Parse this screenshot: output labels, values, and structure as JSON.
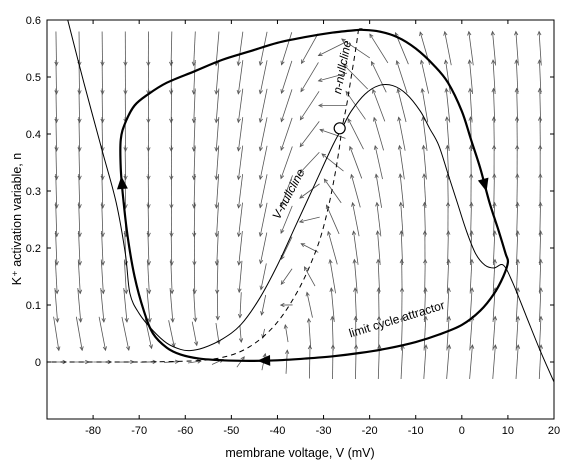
{
  "chart_data": {
    "type": "line",
    "title": "",
    "xlabel": "membrane voltage, V (mV)",
    "ylabel": "K⁺ activation variable, n",
    "xlim": [
      -90,
      20
    ],
    "ylim": [
      -0.1,
      0.6
    ],
    "x_ticks": [
      -80,
      -70,
      -60,
      -50,
      -40,
      -30,
      -20,
      -10,
      0,
      10,
      20
    ],
    "y_ticks": [
      0,
      0.1,
      0.2,
      0.3,
      0.4,
      0.5,
      0.6
    ],
    "x_tick_labels": [
      "-80",
      "-70",
      "-60",
      "-50",
      "-40",
      "-30",
      "-20",
      "-10",
      "0",
      "10",
      "20"
    ],
    "y_tick_labels": [
      "0",
      "0.1",
      "0.2",
      "0.3",
      "0.4",
      "0.5",
      "0.6"
    ],
    "grid": false,
    "legend": "none",
    "annotations": {
      "v_nullcline": "V-nullcline",
      "n_nullcline": "n-nullcline",
      "limit_cycle": "limit cycle attractor"
    },
    "series": [
      {
        "name": "V-nullcline",
        "style": "thin-solid",
        "x": [
          -85.5,
          -82,
          -78,
          -75,
          -73,
          -72,
          -70,
          -67,
          -64,
          -61,
          -59,
          -56,
          -52,
          -48,
          -44,
          -40,
          -36,
          -32,
          -28,
          -26,
          -24,
          -21,
          -18,
          -15,
          -12,
          -9,
          -7,
          -5,
          -3,
          -1,
          1,
          3,
          5,
          7,
          9,
          11,
          14,
          17,
          20
        ],
        "y": [
          0.6,
          0.49,
          0.37,
          0.28,
          0.19,
          0.12,
          0.085,
          0.055,
          0.033,
          0.022,
          0.02,
          0.025,
          0.04,
          0.065,
          0.11,
          0.17,
          0.24,
          0.31,
          0.38,
          0.41,
          0.44,
          0.47,
          0.485,
          0.485,
          0.47,
          0.44,
          0.41,
          0.38,
          0.33,
          0.28,
          0.23,
          0.19,
          0.17,
          0.165,
          0.17,
          0.14,
          0.08,
          0.02,
          -0.035
        ]
      },
      {
        "name": "n-nullcline",
        "style": "dashed",
        "x": [
          -89,
          -80,
          -70,
          -62,
          -58,
          -55,
          -52,
          -49,
          -46,
          -43,
          -40,
          -37,
          -34,
          -31,
          -29,
          -27.5,
          -26.5,
          -26,
          -25,
          -24,
          -23,
          -22.3
        ],
        "y": [
          0.0,
          0.0,
          0.0,
          0.001,
          0.002,
          0.004,
          0.008,
          0.015,
          0.027,
          0.045,
          0.07,
          0.105,
          0.15,
          0.21,
          0.27,
          0.33,
          0.38,
          0.41,
          0.45,
          0.5,
          0.55,
          0.59
        ]
      },
      {
        "name": "limit cycle",
        "style": "thick-solid",
        "x": [
          -22,
          -18,
          -14,
          -10,
          -6,
          -3,
          0,
          2,
          4,
          6,
          8,
          9.5,
          10,
          9,
          7,
          4,
          0,
          -5,
          -10,
          -16,
          -22,
          -28,
          -34,
          -40,
          -46,
          -52,
          -57,
          -61,
          -64,
          -67,
          -69,
          -71,
          -72.5,
          -73.5,
          -74,
          -74,
          -73,
          -71,
          -68,
          -64,
          -58,
          -52,
          -46,
          -40,
          -34,
          -28,
          -22
        ],
        "y": [
          0.583,
          0.58,
          0.57,
          0.55,
          0.52,
          0.49,
          0.44,
          0.39,
          0.34,
          0.28,
          0.23,
          0.19,
          0.175,
          0.15,
          0.12,
          0.09,
          0.065,
          0.048,
          0.035,
          0.024,
          0.016,
          0.01,
          0.006,
          0.003,
          0.002,
          0.003,
          0.006,
          0.013,
          0.025,
          0.05,
          0.09,
          0.15,
          0.22,
          0.29,
          0.34,
          0.39,
          0.42,
          0.45,
          0.47,
          0.49,
          0.51,
          0.53,
          0.545,
          0.56,
          0.57,
          0.578,
          0.583
        ]
      }
    ],
    "equilibrium_point": {
      "x": -26.5,
      "y": 0.41,
      "type": "unstable"
    },
    "flow_arrows": {
      "x_step": 10,
      "x_from": -88,
      "y_step": 0.05,
      "y_from": 0.0
    }
  }
}
